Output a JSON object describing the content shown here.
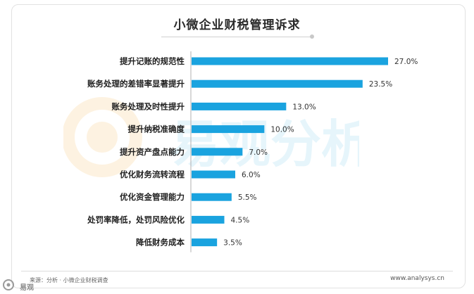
{
  "header": {
    "title": "小微企业财税管理诉求"
  },
  "footer": {
    "source": "来源：分析 · 小微企业财税调查",
    "site": "www.analysys.cn",
    "corner_label": "易观"
  },
  "watermark": {
    "text": "易观分析"
  },
  "colors": {
    "bar": "#1aa3df",
    "label": "#1f1f1f",
    "value": "#333333"
  },
  "chart_data": {
    "type": "bar",
    "orientation": "horizontal",
    "title": "小微企业财税管理诉求",
    "categories": [
      "提升记账的规范性",
      "账务处理的差错率显著提升",
      "账务处理及时性提升",
      "提升纳税准确度",
      "提升资产盘点能力",
      "优化财务流转流程",
      "优化资金管理能力",
      "处罚率降低，处罚风险优化",
      "降低财务成本"
    ],
    "values": [
      27.0,
      23.5,
      13.0,
      10.0,
      7.0,
      6.0,
      5.5,
      4.5,
      3.5
    ],
    "value_labels": [
      "27.0%",
      "23.5%",
      "13.0%",
      "10.0%",
      "7.0%",
      "6.0%",
      "5.5%",
      "4.5%",
      "3.5%"
    ],
    "xlim": [
      0,
      27.0
    ],
    "grid": false,
    "legend": "none"
  }
}
